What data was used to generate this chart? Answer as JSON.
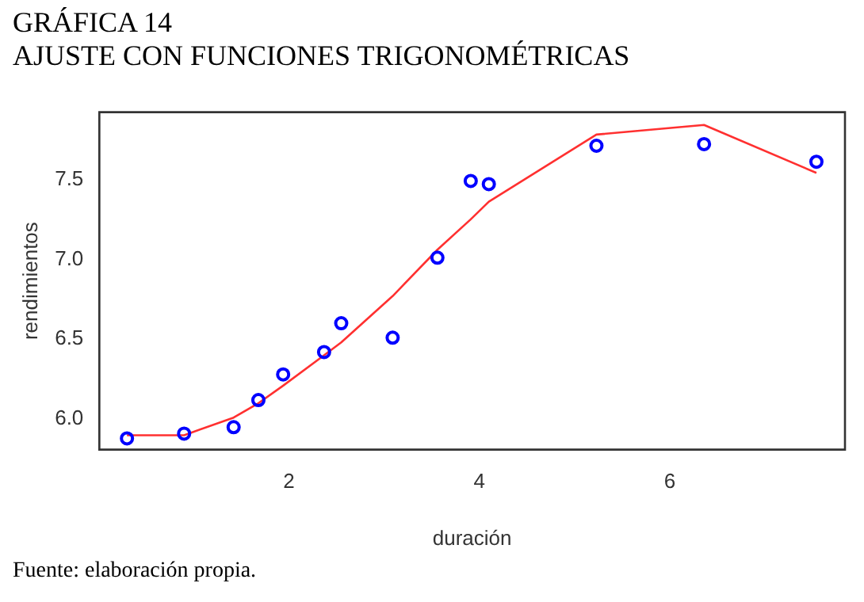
{
  "chart_data": {
    "type": "scatter",
    "title": "GRÁFICA 14",
    "subtitle": "AJUSTE CON FUNCIONES TRIGONOMÉTRICAS",
    "xlabel": "duración",
    "ylabel": "rendimientos",
    "annotations": [
      "Fuente: elaboración propia."
    ],
    "xlim": [
      0.01,
      7.84
    ],
    "xticks": [
      2,
      4,
      6
    ],
    "ylim": [
      5.81,
      7.92
    ],
    "yticks": [
      {
        "value": 6,
        "label": "6.0"
      },
      6.5,
      {
        "value": 7,
        "label": "7.0"
      },
      7.5
    ],
    "grid": false,
    "legend": false,
    "series": [
      {
        "type": "scatter",
        "marker": "circle",
        "color": "#0000ff",
        "x": [
          0.3,
          0.9,
          1.42,
          1.68,
          1.94,
          2.37,
          2.55,
          3.09,
          3.56,
          3.91,
          4.1,
          5.23,
          6.36,
          7.54
        ],
        "values": [
          5.88,
          5.91,
          5.95,
          6.12,
          6.28,
          6.42,
          6.6,
          6.51,
          7.01,
          7.49,
          7.47,
          7.71,
          7.72,
          7.61
        ]
      },
      {
        "type": "line",
        "marker": "none",
        "color": "#ff3030",
        "line_style": "solid",
        "x": [
          0.3,
          0.9,
          1.42,
          1.68,
          1.94,
          2.37,
          2.55,
          3.09,
          3.56,
          3.91,
          4.1,
          5.23,
          6.36,
          7.54
        ],
        "values": [
          5.9,
          5.9,
          6.01,
          6.1,
          6.21,
          6.4,
          6.48,
          6.77,
          7.06,
          7.25,
          7.36,
          7.78,
          7.84,
          7.54
        ]
      }
    ]
  }
}
